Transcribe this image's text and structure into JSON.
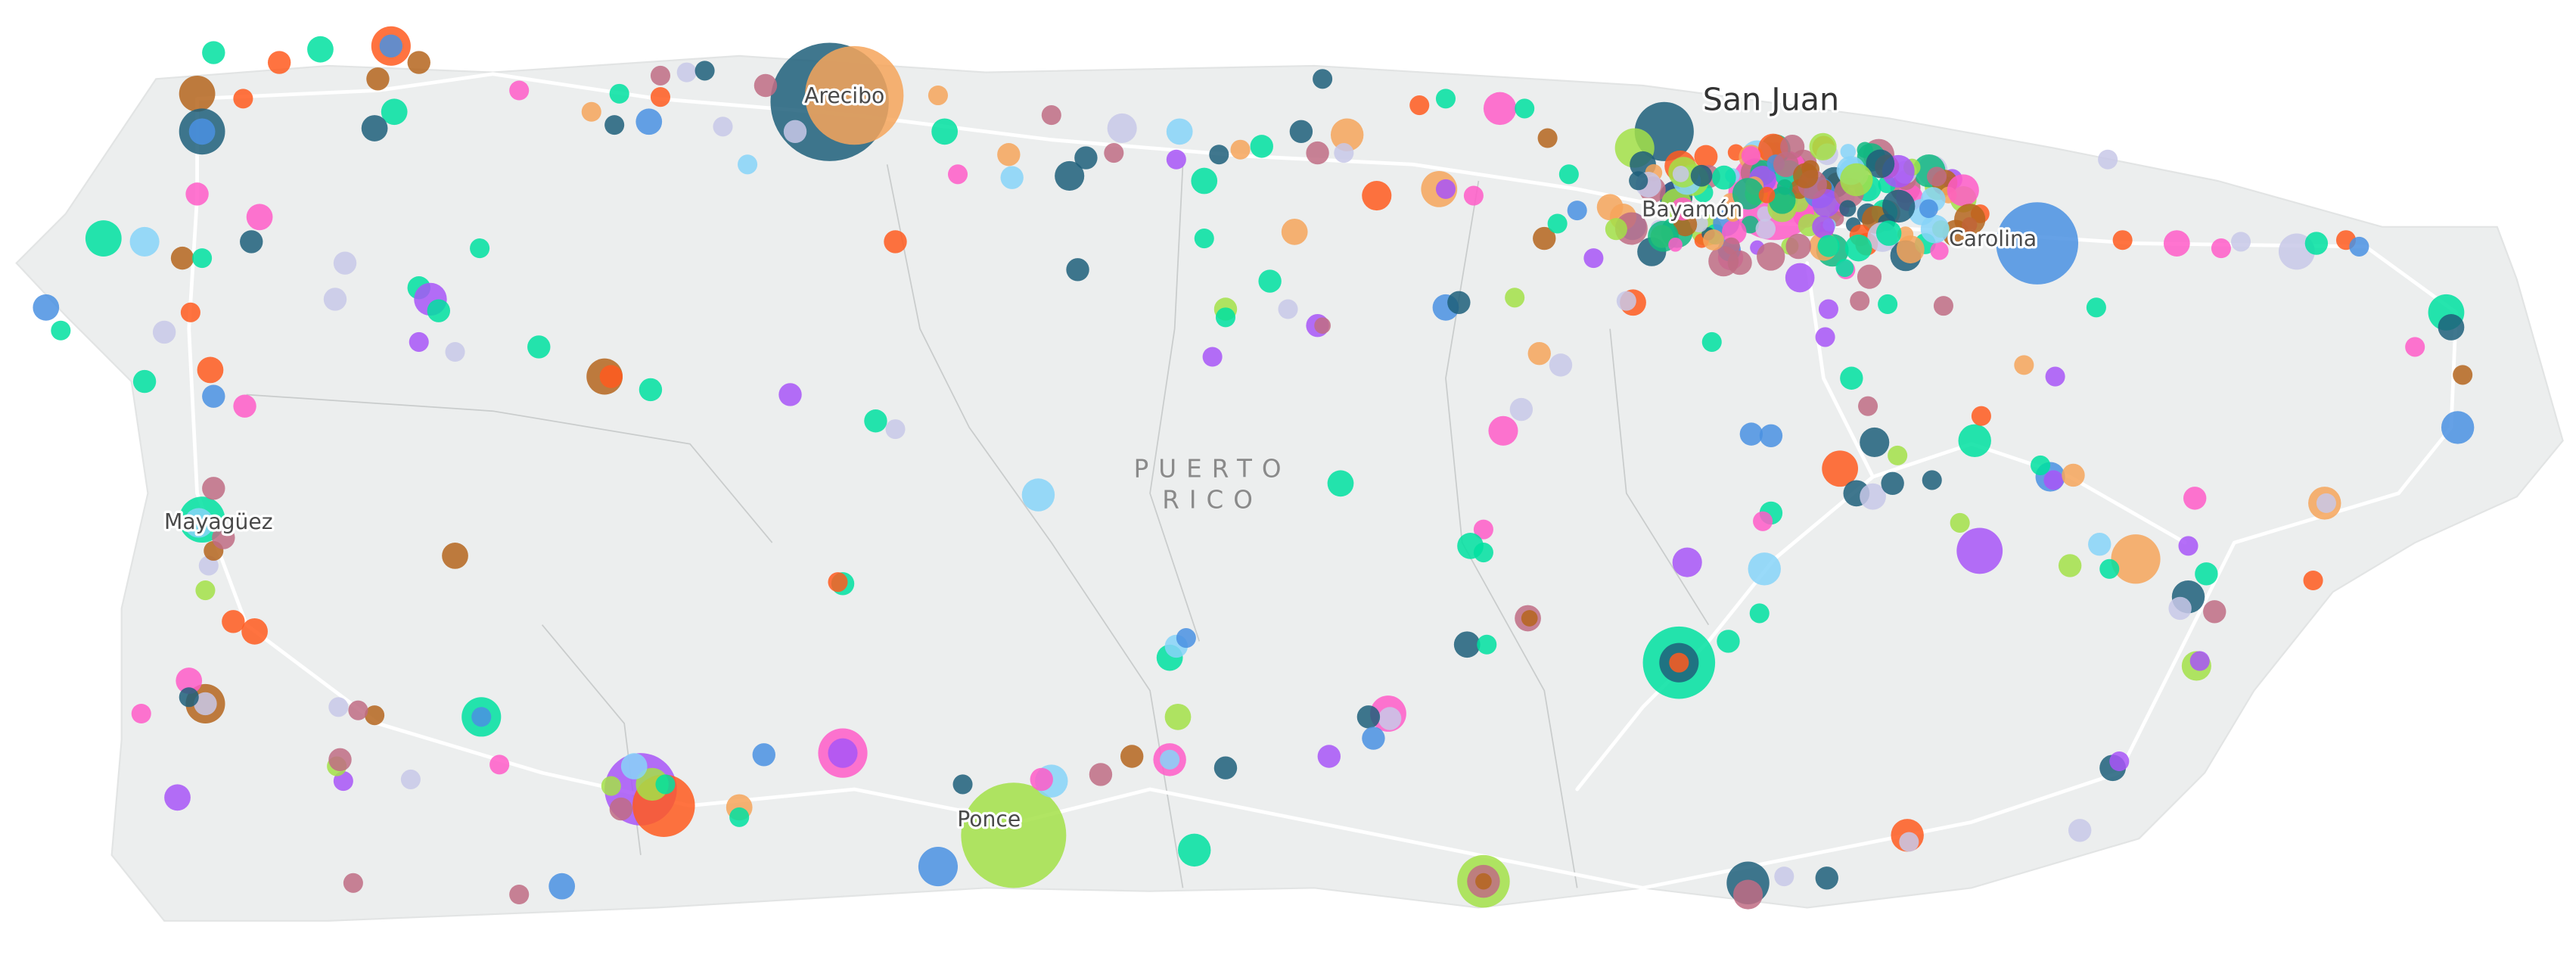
{
  "map": {
    "region_label_lines": [
      "PUERTO",
      "RICO"
    ],
    "city_labels": {
      "san_juan": "San Juan",
      "arecibo": "Arecibo",
      "bayamon": "Bayamón",
      "carolina": "Carolina",
      "mayaguez": "Mayagüez",
      "ponce": "Ponce"
    }
  }
}
